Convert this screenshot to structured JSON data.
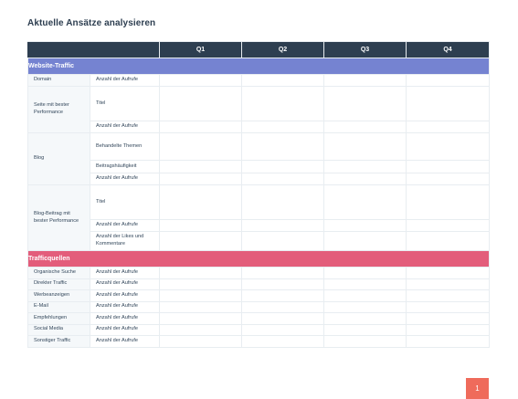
{
  "page": {
    "title": "Aktuelle Ansätze analysieren",
    "page_number": "1"
  },
  "table": {
    "quarters": [
      "Q1",
      "Q2",
      "Q3",
      "Q4"
    ],
    "website_traffic": {
      "heading": "Website-Traffic",
      "groups": [
        {
          "label": "Domain",
          "metrics": [
            "Anzahl der Aufrufe"
          ]
        },
        {
          "label": "Seite mit bester Performance",
          "metrics": [
            "Titel",
            "Anzahl der Aufrufe"
          ]
        },
        {
          "label": "Blog",
          "metrics": [
            "Behandelte Themen",
            "Beitragshäufigkeit",
            "Anzahl der Aufrufe"
          ]
        },
        {
          "label": "Blog-Beitrag mit bester Performance",
          "metrics": [
            "Titel",
            "Anzahl der Aufrufe",
            "Anzahl der Likes und Kommentare"
          ]
        }
      ]
    },
    "traffic_sources": {
      "heading": "Trafficquellen",
      "rows": [
        {
          "label": "Organische Suche",
          "metric": "Anzahl der Aufrufe"
        },
        {
          "label": "Direkter Traffic",
          "metric": "Anzahl der Aufrufe"
        },
        {
          "label": "Werbeanzeigen",
          "metric": "Anzahl der Aufrufe"
        },
        {
          "label": "E-Mail",
          "metric": "Anzahl der Aufrufe"
        },
        {
          "label": "Empfehlungen",
          "metric": "Anzahl der Aufrufe"
        },
        {
          "label": "Social Media",
          "metric": "Anzahl der Aufrufe"
        },
        {
          "label": "Sonstiger Traffic",
          "metric": "Anzahl der Aufrufe"
        }
      ]
    }
  },
  "colors": {
    "header_bg": "#2d3e50",
    "website_traffic_bar": "#7583d1",
    "traffic_sources_bar": "#e35d7b",
    "input_cell": "#dde3fb",
    "page_badge": "#ef6b5b"
  }
}
